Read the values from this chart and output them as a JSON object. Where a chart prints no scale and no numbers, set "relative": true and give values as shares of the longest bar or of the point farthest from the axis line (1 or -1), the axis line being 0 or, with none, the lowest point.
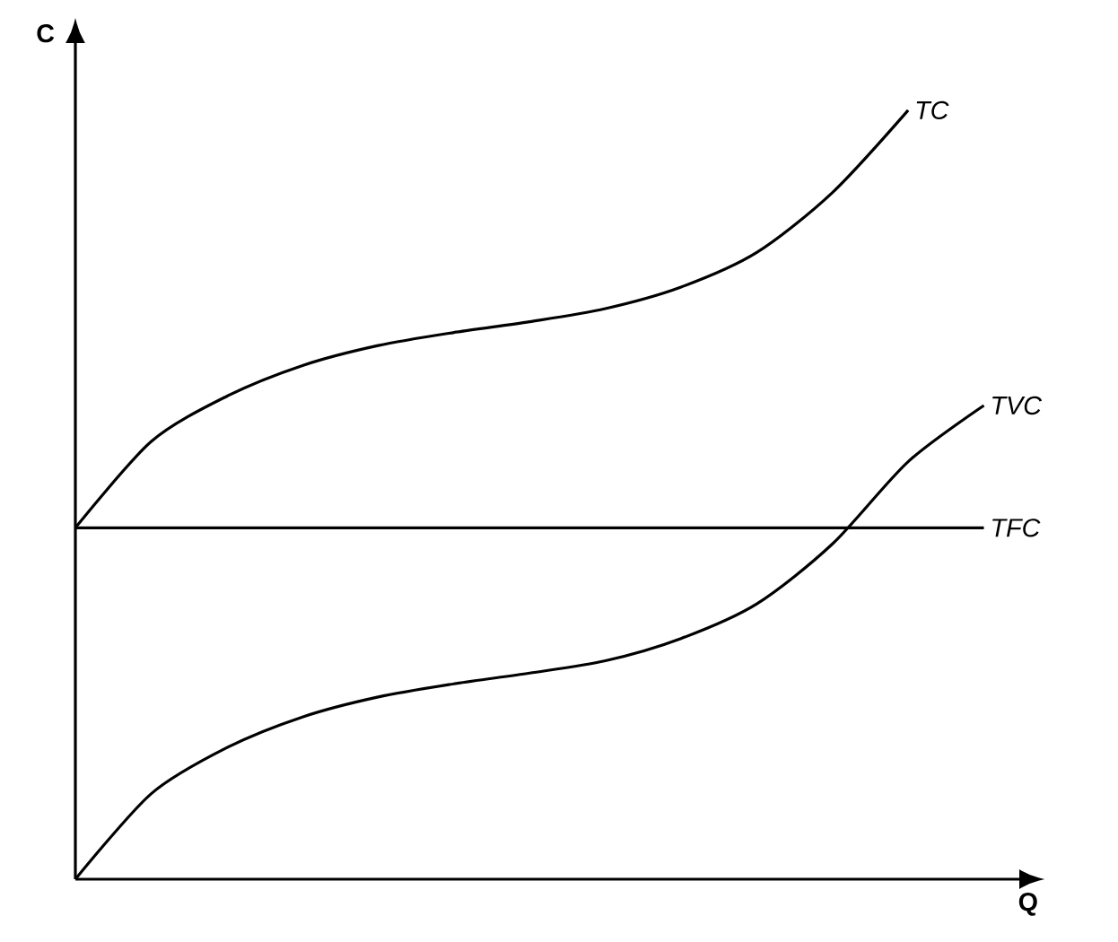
{
  "chart_data": {
    "type": "line",
    "relative": true,
    "xlabel": "Q",
    "ylabel": "C",
    "legend": false,
    "marker": "none",
    "line_style": "solid",
    "categories": [
      null,
      null,
      null,
      null,
      null,
      null,
      null,
      null,
      null,
      null,
      null,
      null,
      null
    ],
    "series": [
      {
        "name": "TC",
        "color": "#000000",
        "values": [
          0.457,
          0.569,
          0.628,
          0.668,
          0.694,
          0.711,
          0.725,
          0.742,
          0.77,
          0.815,
          0.893,
          1.0,
          null
        ]
      },
      {
        "name": "TVC",
        "color": "#000000",
        "values": [
          0,
          0.111,
          0.171,
          0.211,
          0.237,
          0.254,
          0.268,
          0.284,
          0.313,
          0.358,
          0.436,
          0.543,
          0.616
        ]
      },
      {
        "name": "TFC",
        "color": "#000000",
        "values": [
          0.457,
          0.457,
          0.457,
          0.457,
          0.457,
          0.457,
          0.457,
          0.457,
          0.457,
          0.457,
          0.457,
          0.457,
          0.457
        ]
      }
    ]
  }
}
